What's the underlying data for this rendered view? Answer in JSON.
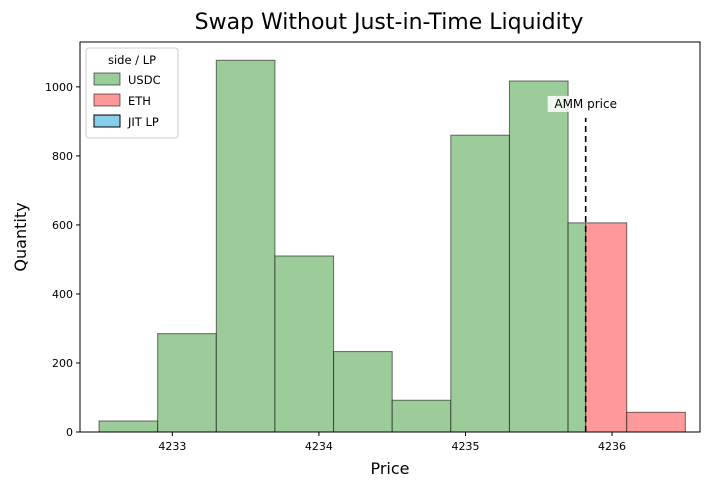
{
  "chart_data": {
    "type": "bar",
    "title": "Swap Without Just-in-Time Liquidity",
    "xlabel": "Price",
    "ylabel": "Quantity",
    "xlim": [
      4232.37,
      4236.6
    ],
    "ylim": [
      0,
      1130
    ],
    "x_ticks": [
      4233,
      4234,
      4235,
      4236
    ],
    "y_ticks": [
      0,
      200,
      400,
      600,
      800,
      1000
    ],
    "legend": {
      "title": "side / LP",
      "placement": "top-left",
      "entries": [
        "USDC",
        "ETH",
        "JIT LP"
      ]
    },
    "series": [
      {
        "name": "USDC",
        "color": "#9ccc9a",
        "bars": [
          {
            "x0": 4232.5,
            "x1": 4232.9,
            "value": 32
          },
          {
            "x0": 4232.9,
            "x1": 4233.3,
            "value": 285
          },
          {
            "x0": 4233.3,
            "x1": 4233.7,
            "value": 1077
          },
          {
            "x0": 4233.7,
            "x1": 4234.1,
            "value": 510
          },
          {
            "x0": 4234.1,
            "x1": 4234.5,
            "value": 233
          },
          {
            "x0": 4234.5,
            "x1": 4234.9,
            "value": 92
          },
          {
            "x0": 4234.9,
            "x1": 4235.3,
            "value": 860
          },
          {
            "x0": 4235.3,
            "x1": 4235.7,
            "value": 1017
          },
          {
            "x0": 4235.7,
            "x1": 4235.82,
            "value": 606
          }
        ]
      },
      {
        "name": "ETH",
        "color": "#ff9999",
        "bars": [
          {
            "x0": 4235.82,
            "x1": 4236.1,
            "value": 606
          },
          {
            "x0": 4236.1,
            "x1": 4236.5,
            "value": 57
          }
        ]
      },
      {
        "name": "JIT LP",
        "color": "#87ceeb",
        "bars": []
      }
    ],
    "annotations": [
      {
        "type": "vline",
        "x": 4235.82,
        "y_top": 910,
        "style": "dashed",
        "label": "AMM price"
      }
    ]
  }
}
